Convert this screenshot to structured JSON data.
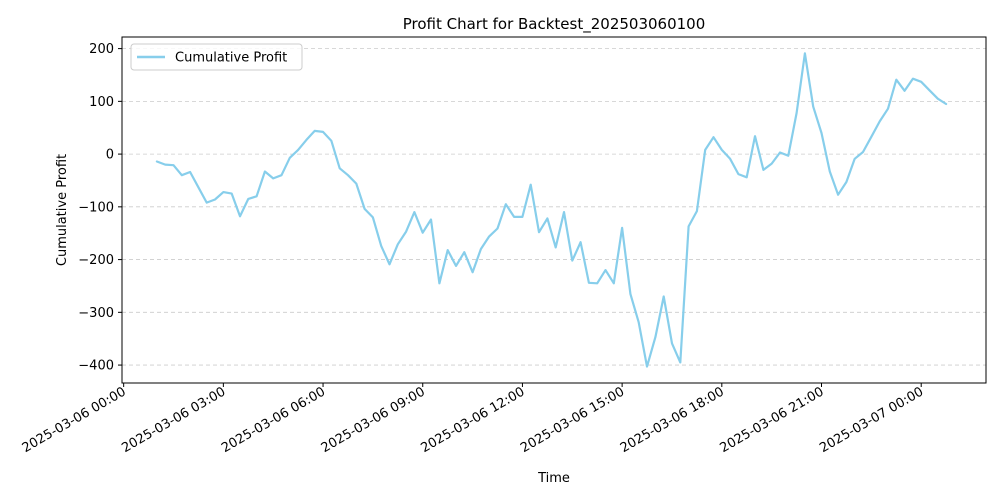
{
  "chart_data": {
    "type": "line",
    "title": "Profit Chart for Backtest_202503060100",
    "xlabel": "Time",
    "ylabel": "Cumulative Profit",
    "x_ticks": [
      "2025-03-06 00:00",
      "2025-03-06 03:00",
      "2025-03-06 06:00",
      "2025-03-06 09:00",
      "2025-03-06 12:00",
      "2025-03-06 15:00",
      "2025-03-06 18:00",
      "2025-03-06 21:00",
      "2025-03-07 00:00"
    ],
    "y_ticks": [
      -400,
      -300,
      -200,
      -100,
      0,
      100,
      200
    ],
    "y_tick_labels": [
      "−400",
      "−300",
      "−200",
      "−100",
      "0",
      "100",
      "200"
    ],
    "xlim": [
      "2025-03-05 23:57",
      "2025-03-07 01:57"
    ],
    "ylim": [
      -434,
      222
    ],
    "grid": "y, dashed",
    "legend": "top-left",
    "series": [
      {
        "name": "Cumulative Profit",
        "color": "#87ceeb",
        "x": [
          "2025-03-06 01:00",
          "2025-03-06 01:15",
          "2025-03-06 01:30",
          "2025-03-06 01:45",
          "2025-03-06 02:00",
          "2025-03-06 02:15",
          "2025-03-06 02:30",
          "2025-03-06 02:45",
          "2025-03-06 03:00",
          "2025-03-06 03:15",
          "2025-03-06 03:30",
          "2025-03-06 03:45",
          "2025-03-06 04:00",
          "2025-03-06 04:15",
          "2025-03-06 04:30",
          "2025-03-06 04:45",
          "2025-03-06 05:00",
          "2025-03-06 05:15",
          "2025-03-06 05:30",
          "2025-03-06 05:45",
          "2025-03-06 06:00",
          "2025-03-06 06:15",
          "2025-03-06 06:30",
          "2025-03-06 06:45",
          "2025-03-06 07:00",
          "2025-03-06 07:15",
          "2025-03-06 07:30",
          "2025-03-06 07:45",
          "2025-03-06 08:00",
          "2025-03-06 08:15",
          "2025-03-06 08:30",
          "2025-03-06 08:45",
          "2025-03-06 09:00",
          "2025-03-06 09:15",
          "2025-03-06 09:30",
          "2025-03-06 09:45",
          "2025-03-06 10:00",
          "2025-03-06 10:15",
          "2025-03-06 10:30",
          "2025-03-06 10:45",
          "2025-03-06 11:00",
          "2025-03-06 11:15",
          "2025-03-06 11:30",
          "2025-03-06 11:45",
          "2025-03-06 12:00",
          "2025-03-06 12:15",
          "2025-03-06 12:30",
          "2025-03-06 12:45",
          "2025-03-06 13:00",
          "2025-03-06 13:15",
          "2025-03-06 13:30",
          "2025-03-06 13:45",
          "2025-03-06 14:00",
          "2025-03-06 14:15",
          "2025-03-06 14:30",
          "2025-03-06 14:45",
          "2025-03-06 15:00",
          "2025-03-06 15:15",
          "2025-03-06 15:30",
          "2025-03-06 15:45",
          "2025-03-06 16:00",
          "2025-03-06 16:15",
          "2025-03-06 16:30",
          "2025-03-06 16:45",
          "2025-03-06 17:00",
          "2025-03-06 17:15",
          "2025-03-06 17:30",
          "2025-03-06 17:45",
          "2025-03-06 18:00",
          "2025-03-06 18:15",
          "2025-03-06 18:30",
          "2025-03-06 18:45",
          "2025-03-06 19:00",
          "2025-03-06 19:15",
          "2025-03-06 19:30",
          "2025-03-06 19:45",
          "2025-03-06 20:00",
          "2025-03-06 20:15",
          "2025-03-06 20:30",
          "2025-03-06 20:45",
          "2025-03-06 21:00",
          "2025-03-06 21:15",
          "2025-03-06 21:30",
          "2025-03-06 21:45",
          "2025-03-06 22:00",
          "2025-03-06 22:15",
          "2025-03-06 22:30",
          "2025-03-06 22:45",
          "2025-03-06 23:00",
          "2025-03-06 23:15",
          "2025-03-06 23:30",
          "2025-03-06 23:45",
          "2025-03-07 00:00",
          "2025-03-07 00:15",
          "2025-03-07 00:30",
          "2025-03-07 00:45"
        ],
        "values": [
          -14,
          -20,
          -21,
          -40,
          -34,
          -63,
          -92,
          -86,
          -72,
          -75,
          -118,
          -85,
          -80,
          -33,
          -46,
          -40,
          -7,
          8,
          27,
          44,
          42,
          25,
          -27,
          -40,
          -56,
          -104,
          -120,
          -174,
          -209,
          -171,
          -147,
          -110,
          -149,
          -124,
          -245,
          -182,
          -212,
          -186,
          -224,
          -180,
          -156,
          -141,
          -95,
          -119,
          -119,
          -58,
          -148,
          -122,
          -177,
          -110,
          -202,
          -167,
          -244,
          -245,
          -220,
          -245,
          -140,
          -265,
          -319,
          -403,
          -347,
          -270,
          -359,
          -395,
          -137,
          -108,
          8,
          32,
          8,
          -9,
          -38,
          -44,
          34,
          -30,
          -18,
          3,
          -3,
          78,
          191,
          90,
          40,
          -33,
          -77,
          -53,
          -9,
          4,
          33,
          62,
          86,
          141,
          120,
          143,
          137,
          121,
          105,
          95
        ]
      }
    ]
  }
}
